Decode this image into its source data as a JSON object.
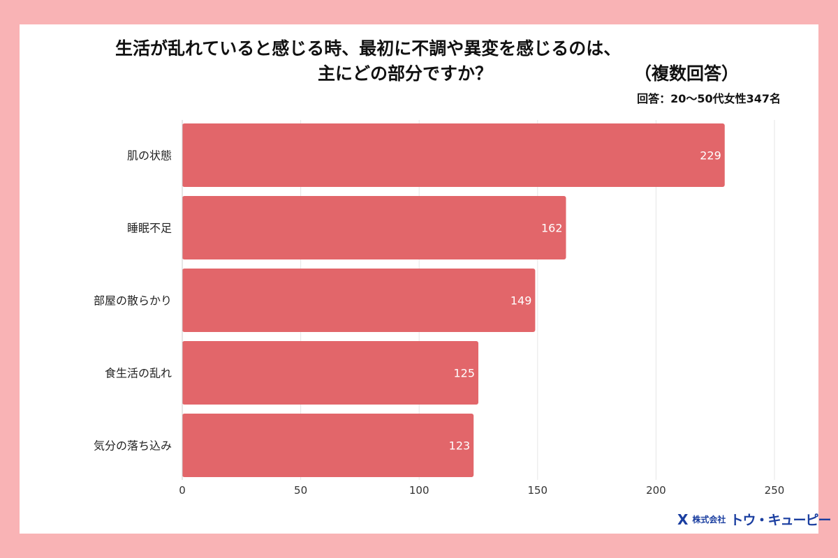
{
  "chart_data": {
    "type": "bar",
    "orientation": "horizontal",
    "title_line1": "生活が乱れていると感じる時、最初に不調や異変を感じるのは、",
    "title_line2": "主にどの部分ですか？",
    "title_note": "（複数回答）",
    "subtitle": "回答：20〜50代女性347名",
    "categories": [
      "肌の状態",
      "睡眠不足",
      "部屋の散らかり",
      "食生活の乱れ",
      "気分の落ち込み"
    ],
    "values": [
      229,
      162,
      149,
      125,
      123
    ],
    "xlim": [
      0,
      250
    ],
    "xticks": [
      0,
      50,
      100,
      150,
      200,
      250
    ],
    "grid": true,
    "bar_color": "#e2666a",
    "background_color": "#f9b3b5"
  },
  "logo": {
    "mark": "X",
    "company_prefix": "株式会社",
    "company_name": "トウ・キューピー"
  }
}
